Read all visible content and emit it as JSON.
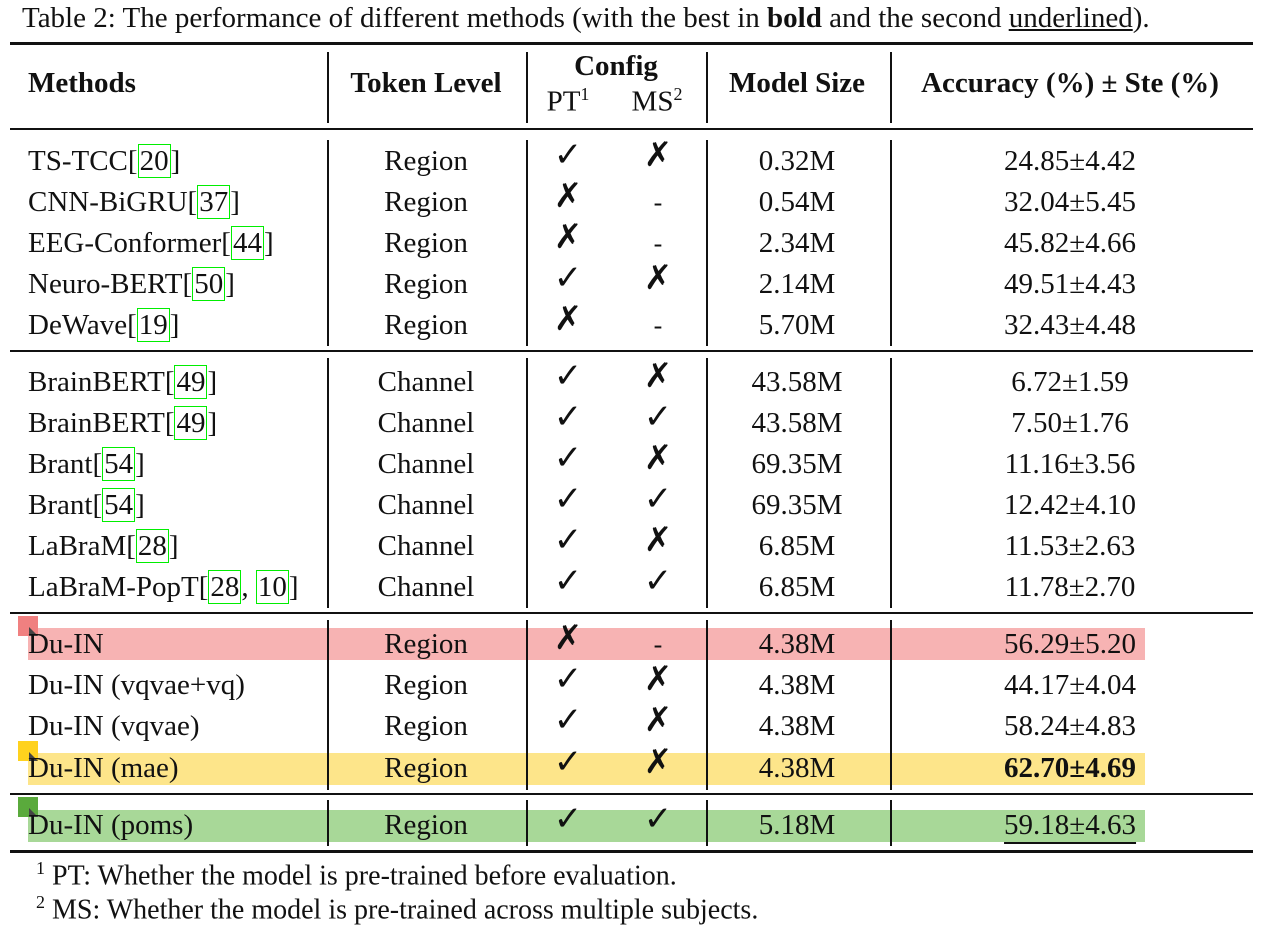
{
  "caption": {
    "prefix": "Table 2: The performance of different methods (with the best in ",
    "bold_word": "bold",
    "middle": " and the second ",
    "underlined_word": "underlined",
    "suffix": ")."
  },
  "headers": {
    "methods": "Methods",
    "token_level": "Token Level",
    "config": "Config",
    "pt": "PT",
    "pt_sup": "1",
    "ms": "MS",
    "ms_sup": "2",
    "model_size": "Model Size",
    "accuracy": "Accuracy (%) ± Ste (%)"
  },
  "highlight_colors": {
    "red": "#f7b3b3",
    "yellow": "#fde58a",
    "green": "#a8d898",
    "red_tag": "#f08080",
    "yellow_tag": "#ffd21e",
    "green_tag": "#5aaa3c",
    "citation_box": "#00ee00"
  },
  "symbols": {
    "check": "✓",
    "cross": "✗",
    "dash": "-"
  },
  "rows": [
    {
      "name": "TS-TCC",
      "cite": "20",
      "token": "Region",
      "pt": "check",
      "ms": "cross",
      "size": "0.32M",
      "acc": "24.85±4.42"
    },
    {
      "name": "CNN-BiGRU",
      "cite": "37",
      "token": "Region",
      "pt": "cross",
      "ms": "dash",
      "size": "0.54M",
      "acc": "32.04±5.45"
    },
    {
      "name": "EEG-Conformer",
      "cite": "44",
      "token": "Region",
      "pt": "cross",
      "ms": "dash",
      "size": "2.34M",
      "acc": "45.82±4.66"
    },
    {
      "name": "Neuro-BERT",
      "cite": "50",
      "token": "Region",
      "pt": "check",
      "ms": "cross",
      "size": "2.14M",
      "acc": "49.51±4.43"
    },
    {
      "name": "DeWave",
      "cite": "19",
      "token": "Region",
      "pt": "cross",
      "ms": "dash",
      "size": "5.70M",
      "acc": "32.43±4.48"
    },
    {
      "name": "BrainBERT",
      "cite": "49",
      "token": "Channel",
      "pt": "check",
      "ms": "cross",
      "size": "43.58M",
      "acc": "6.72±1.59"
    },
    {
      "name": "BrainBERT",
      "cite": "49",
      "token": "Channel",
      "pt": "check",
      "ms": "check",
      "size": "43.58M",
      "acc": "7.50±1.76"
    },
    {
      "name": "Brant",
      "cite": "54",
      "token": "Channel",
      "pt": "check",
      "ms": "cross",
      "size": "69.35M",
      "acc": "11.16±3.56"
    },
    {
      "name": "Brant",
      "cite": "54",
      "token": "Channel",
      "pt": "check",
      "ms": "check",
      "size": "69.35M",
      "acc": "12.42±4.10"
    },
    {
      "name": "LaBraM",
      "cite": "28",
      "token": "Channel",
      "pt": "check",
      "ms": "cross",
      "size": "6.85M",
      "acc": "11.53±2.63"
    },
    {
      "name": "LaBraM-PopT",
      "cite": "28",
      "cite2": "10",
      "token": "Channel",
      "pt": "check",
      "ms": "check",
      "size": "6.85M",
      "acc": "11.78±2.70"
    },
    {
      "name": "Du-IN",
      "token": "Region",
      "pt": "cross",
      "ms": "dash",
      "size": "4.38M",
      "acc": "56.29±5.20",
      "highlight": "red"
    },
    {
      "name": "Du-IN (vqvae+vq)",
      "token": "Region",
      "pt": "check",
      "ms": "cross",
      "size": "4.38M",
      "acc": "44.17±4.04"
    },
    {
      "name": "Du-IN (vqvae)",
      "token": "Region",
      "pt": "check",
      "ms": "cross",
      "size": "4.38M",
      "acc": "58.24±4.83"
    },
    {
      "name": "Du-IN (mae)",
      "token": "Region",
      "pt": "check",
      "ms": "cross",
      "size": "4.38M",
      "acc": "62.70±4.69",
      "highlight": "yellow",
      "best": true
    },
    {
      "name": "Du-IN (poms)",
      "token": "Region",
      "pt": "check",
      "ms": "check",
      "size": "5.18M",
      "acc": "59.18±4.63",
      "highlight": "green",
      "second": true
    }
  ],
  "footnotes": [
    {
      "sup": "1",
      "text": "PT: Whether the model is pre-trained before evaluation."
    },
    {
      "sup": "2",
      "text": "MS: Whether the model is pre-trained across multiple subjects."
    }
  ]
}
